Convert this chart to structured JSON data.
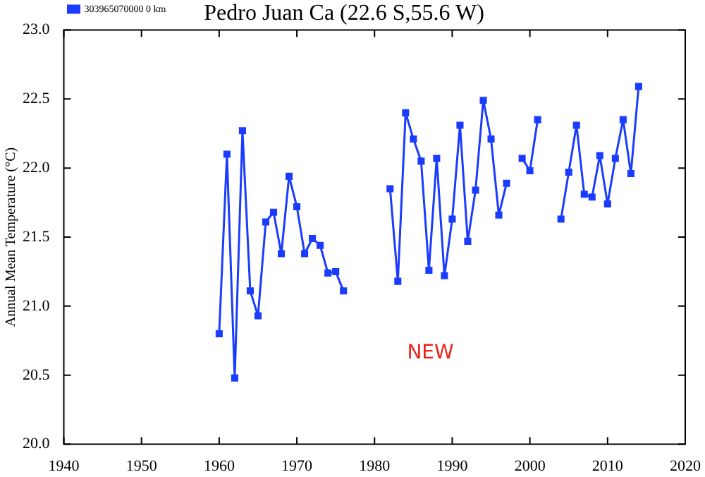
{
  "chart_data": {
    "type": "line",
    "title": "Pedro Juan Ca (22.6 S,55.6 W)",
    "ylabel": "Annual Mean Temperature (°C)",
    "annotations": [
      "NEW"
    ],
    "x": [
      1960,
      1961,
      1962,
      1963,
      1964,
      1965,
      1966,
      1967,
      1968,
      1969,
      1970,
      1971,
      1972,
      1973,
      1974,
      1975,
      1976,
      1977,
      1978,
      1979,
      1980,
      1981,
      1982,
      1983,
      1984,
      1985,
      1986,
      1987,
      1988,
      1989,
      1990,
      1991,
      1992,
      1993,
      1994,
      1995,
      1996,
      1997,
      1998,
      1999,
      2000,
      2001,
      2002,
      2003,
      2004,
      2005,
      2006,
      2007,
      2008,
      2009,
      2010,
      2011,
      2012,
      2013,
      2014
    ],
    "series": [
      {
        "name": "303965070000 0 km",
        "color": "#1a3cff",
        "values": [
          20.8,
          22.1,
          20.48,
          22.27,
          21.11,
          20.93,
          21.61,
          21.68,
          21.38,
          21.94,
          21.72,
          21.38,
          21.49,
          21.44,
          21.24,
          21.25,
          21.11,
          null,
          null,
          null,
          null,
          null,
          21.85,
          21.18,
          22.4,
          22.21,
          22.05,
          21.26,
          22.07,
          21.22,
          21.63,
          22.31,
          21.47,
          21.84,
          22.49,
          22.21,
          21.66,
          21.89,
          null,
          22.07,
          21.98,
          22.35,
          null,
          null,
          21.63,
          21.97,
          22.31,
          21.81,
          21.79,
          22.09,
          21.74,
          22.07,
          22.35,
          21.96,
          22.59
        ]
      }
    ],
    "xlim": [
      1940,
      2020
    ],
    "xticks": [
      1940,
      1950,
      1960,
      1970,
      1980,
      1990,
      2000,
      2010,
      2020
    ],
    "ylim": [
      20,
      23
    ],
    "yticks": [
      {
        "value": 20,
        "label": "20.0"
      },
      {
        "value": 20.5,
        "label": "20.5"
      },
      {
        "value": 21,
        "label": "21.0"
      },
      {
        "value": 21.5,
        "label": "21.5"
      },
      {
        "value": 22,
        "label": "22.0"
      },
      {
        "value": 22.5,
        "label": "22.5"
      },
      {
        "value": 23,
        "label": "23.0"
      }
    ],
    "grid": false,
    "legend": "top left",
    "marker": "square",
    "line_style": "solid"
  }
}
